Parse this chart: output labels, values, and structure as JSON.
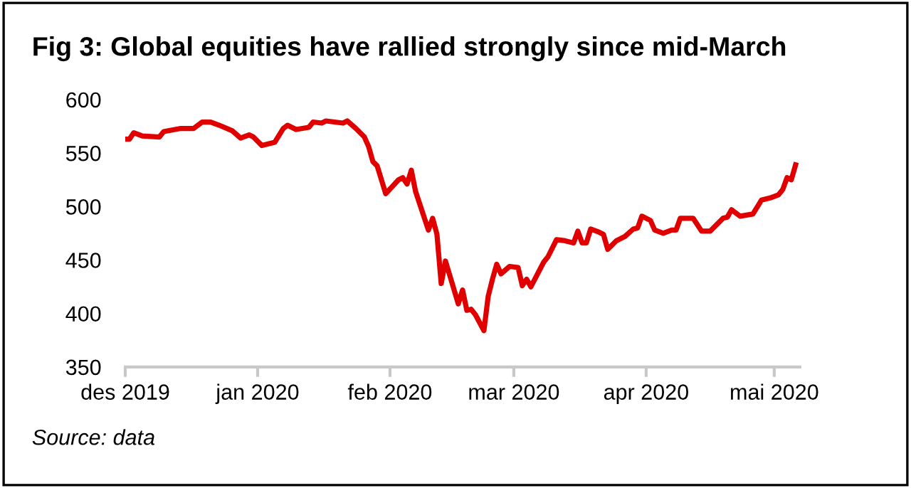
{
  "chart_data": {
    "type": "line",
    "title": "Fig 3: Global equities have rallied strongly since mid-March",
    "x": [
      "2019-12-01",
      "2019-12-02",
      "2019-12-03",
      "2019-12-05",
      "2019-12-09",
      "2019-12-10",
      "2019-12-14",
      "2019-12-17",
      "2019-12-19",
      "2019-12-21",
      "2019-12-23",
      "2019-12-26",
      "2019-12-28",
      "2019-12-30",
      "2019-12-31",
      "2020-01-02",
      "2020-01-05",
      "2020-01-07",
      "2020-01-08",
      "2020-01-10",
      "2020-01-13",
      "2020-01-14",
      "2020-01-16",
      "2020-01-17",
      "2020-01-21",
      "2020-01-22",
      "2020-01-24",
      "2020-01-26",
      "2020-01-27",
      "2020-01-28",
      "2020-01-29",
      "2020-01-31",
      "2020-02-03",
      "2020-02-04",
      "2020-02-05",
      "2020-02-06",
      "2020-02-07",
      "2020-02-10",
      "2020-02-11",
      "2020-02-12",
      "2020-02-13",
      "2020-02-14",
      "2020-02-17",
      "2020-02-18",
      "2020-02-19",
      "2020-02-20",
      "2020-02-21",
      "2020-02-23",
      "2020-02-24",
      "2020-02-25",
      "2020-02-26",
      "2020-02-27",
      "2020-02-29",
      "2020-03-02",
      "2020-03-03",
      "2020-03-04",
      "2020-03-05",
      "2020-03-08",
      "2020-03-09",
      "2020-03-11",
      "2020-03-13",
      "2020-03-15",
      "2020-03-16",
      "2020-03-17",
      "2020-03-18",
      "2020-03-19",
      "2020-03-21",
      "2020-03-22",
      "2020-03-23",
      "2020-03-25",
      "2020-03-27",
      "2020-03-29",
      "2020-03-30",
      "2020-03-31",
      "2020-04-02",
      "2020-04-03",
      "2020-04-05",
      "2020-04-07",
      "2020-04-08",
      "2020-04-09",
      "2020-04-12",
      "2020-04-14",
      "2020-04-16",
      "2020-04-19",
      "2020-04-20",
      "2020-04-21",
      "2020-04-23",
      "2020-04-26",
      "2020-04-28",
      "2020-04-30",
      "2020-05-02",
      "2020-05-03",
      "2020-05-04",
      "2020-05-05",
      "2020-05-06"
    ],
    "series": [
      {
        "color": "#e00000",
        "values": [
          563,
          563,
          569,
          566,
          565,
          570,
          573,
          573,
          579,
          579,
          576,
          571,
          564,
          567,
          565,
          557,
          560,
          573,
          576,
          572,
          574,
          579,
          578,
          580,
          578,
          580,
          573,
          565,
          556,
          542,
          538,
          512,
          525,
          527,
          521,
          534,
          514,
          478,
          489,
          474,
          428,
          449,
          409,
          422,
          403,
          404,
          399,
          384,
          416,
          432,
          446,
          437,
          444,
          443,
          426,
          432,
          425,
          448,
          453,
          469,
          468,
          466,
          477,
          466,
          466,
          479,
          476,
          474,
          460,
          468,
          472,
          479,
          480,
          491,
          487,
          478,
          475,
          478,
          478,
          489,
          489,
          477,
          477,
          489,
          490,
          497,
          491,
          493,
          506,
          508,
          511,
          516,
          527,
          525,
          539
        ]
      }
    ],
    "xlim": [
      "2019-12-01",
      "2020-05-07"
    ],
    "xticks": [
      {
        "value": "2019-12-01",
        "label": "des 2019"
      },
      {
        "value": "2020-01-01",
        "label": "jan 2020"
      },
      {
        "value": "2020-02-01",
        "label": "feb 2020"
      },
      {
        "value": "2020-03-01",
        "label": "mar 2020"
      },
      {
        "value": "2020-04-01",
        "label": "apr 2020"
      },
      {
        "value": "2020-05-01",
        "label": "mai 2020"
      }
    ],
    "ylim": [
      350,
      600
    ],
    "yticks": [
      350,
      400,
      450,
      500,
      550,
      600
    ],
    "grid": false,
    "legend": false,
    "marker": "none",
    "line_style": "solid",
    "annotations": [
      "Source: data"
    ]
  }
}
